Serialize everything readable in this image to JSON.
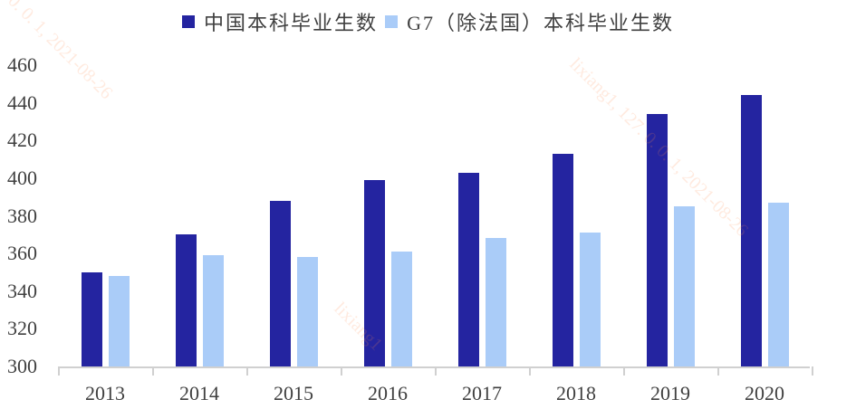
{
  "chart_data": {
    "type": "bar",
    "title": "",
    "xlabel": "",
    "ylabel": "",
    "categories": [
      "2013",
      "2014",
      "2015",
      "2016",
      "2017",
      "2018",
      "2019",
      "2020"
    ],
    "series": [
      {
        "name": "中国本科毕业生数",
        "color": "#2424A0",
        "values": [
          350,
          370,
          388,
          399,
          403,
          413,
          434,
          444
        ]
      },
      {
        "name": "G7（除法国）本科毕业生数",
        "color": "#AACCF8",
        "values": [
          348,
          359,
          358,
          361,
          368,
          371,
          385,
          387
        ]
      }
    ],
    "ylim": [
      300,
      460
    ],
    "yticks": [
      "460",
      "440",
      "420",
      "400",
      "380",
      "360",
      "340",
      "320",
      "300"
    ],
    "grid": false,
    "legend_position": "top"
  },
  "watermarks": [
    "0. 0. 1, 2021-08-26",
    "lixiang1, 127. 0. 0. 1, 2021-08-26",
    "lixiang1"
  ]
}
